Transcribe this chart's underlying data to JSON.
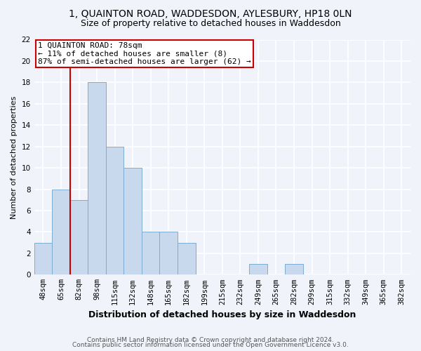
{
  "title1": "1, QUAINTON ROAD, WADDESDON, AYLESBURY, HP18 0LN",
  "title2": "Size of property relative to detached houses in Waddesdon",
  "xlabel": "Distribution of detached houses by size in Waddesdon",
  "ylabel": "Number of detached properties",
  "categories": [
    "48sqm",
    "65sqm",
    "82sqm",
    "98sqm",
    "115sqm",
    "132sqm",
    "148sqm",
    "165sqm",
    "182sqm",
    "199sqm",
    "215sqm",
    "232sqm",
    "249sqm",
    "265sqm",
    "282sqm",
    "299sqm",
    "315sqm",
    "332sqm",
    "349sqm",
    "365sqm",
    "382sqm"
  ],
  "values": [
    3,
    8,
    7,
    18,
    12,
    10,
    4,
    4,
    3,
    0,
    0,
    0,
    1,
    0,
    1,
    0,
    0,
    0,
    0,
    0,
    0
  ],
  "bar_color": "#c9d9ed",
  "bar_edgecolor": "#7bacd4",
  "vline_color": "#cc0000",
  "annotation_box_edgecolor": "#cc0000",
  "annotation_line1": "1 QUAINTON ROAD: 78sqm",
  "annotation_line2": "← 11% of detached houses are smaller (8)",
  "annotation_line3": "87% of semi-detached houses are larger (62) →",
  "ylim": [
    0,
    22
  ],
  "yticks": [
    0,
    2,
    4,
    6,
    8,
    10,
    12,
    14,
    16,
    18,
    20,
    22
  ],
  "footer1": "Contains HM Land Registry data © Crown copyright and database right 2024.",
  "footer2": "Contains public sector information licensed under the Open Government Licence v3.0.",
  "bg_color": "#f0f4fa",
  "plot_bg_color": "#f0f4fa",
  "grid_color": "#ffffff",
  "title1_fontsize": 10,
  "title2_fontsize": 9,
  "xlabel_fontsize": 9,
  "ylabel_fontsize": 8,
  "tick_fontsize": 7.5,
  "annotation_fontsize": 8,
  "footer_fontsize": 6.5,
  "vline_bin_index": 2
}
